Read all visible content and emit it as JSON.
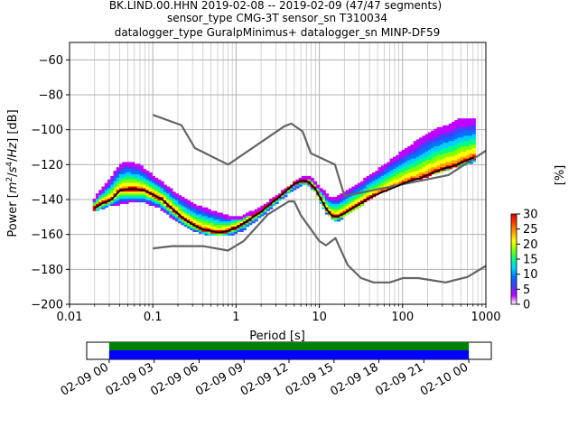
{
  "chart_data": {
    "type": "heatmap",
    "title_lines": [
      "BK.LIND.00.HHN   2019-02-08 -- 2019-02-09  (47/47 segments)",
      "sensor_type CMG-3T sensor_sn T310034",
      "datalogger_type GuralpMinimus+ datalogger_sn MINP-DF59"
    ],
    "xlabel": "Period [s]",
    "ylabel_parts": [
      "Power [",
      "m",
      "2",
      "/",
      "s",
      "4",
      "/",
      "Hz",
      "] [dB]"
    ],
    "x_scale": "log",
    "xlim": [
      0.01,
      1000
    ],
    "ylim": [
      -200,
      -50
    ],
    "x_ticks": [
      {
        "value": 0.01,
        "label": "0.01"
      },
      {
        "value": 0.1,
        "label": "0.1"
      },
      {
        "value": 1,
        "label": "1"
      },
      {
        "value": 10,
        "label": "10"
      },
      {
        "value": 100,
        "label": "100"
      },
      {
        "value": 1000,
        "label": "1000"
      }
    ],
    "y_ticks": [
      {
        "value": -60,
        "label": "−60"
      },
      {
        "value": -80,
        "label": "−80"
      },
      {
        "value": -100,
        "label": "−100"
      },
      {
        "value": -120,
        "label": "−120"
      },
      {
        "value": -140,
        "label": "−140"
      },
      {
        "value": -160,
        "label": "−160"
      },
      {
        "value": -180,
        "label": "−180"
      },
      {
        "value": -200,
        "label": "−200"
      }
    ],
    "grid": true,
    "colorbar": {
      "label": "[%]",
      "range": [
        0,
        30
      ],
      "ticks": [
        {
          "value": 30,
          "label": "30"
        },
        {
          "value": 25,
          "label": "25"
        },
        {
          "value": 20,
          "label": "20"
        },
        {
          "value": 15,
          "label": "15"
        },
        {
          "value": 10,
          "label": "10"
        },
        {
          "value": 5,
          "label": "5"
        },
        {
          "value": 0,
          "label": "0"
        }
      ],
      "colors": [
        "#ffffff",
        "#c000ff",
        "#4040ff",
        "#0070ff",
        "#00d0ff",
        "#00ff80",
        "#80ff00",
        "#ffff00",
        "#ffa000",
        "#ff4000",
        "#e00000"
      ]
    },
    "noise_model_high": {
      "periods": [
        0.1,
        0.22,
        0.32,
        0.8,
        3.8,
        4.6,
        6.3,
        7.9,
        15.4,
        20,
        354.8,
        1000
      ],
      "db": [
        -91.5,
        -97.4,
        -110.5,
        -120,
        -98,
        -96.5,
        -101,
        -113.5,
        -120,
        -138,
        -126,
        -112
      ]
    },
    "noise_model_low": {
      "periods": [
        0.1,
        0.17,
        0.4,
        0.8,
        1.24,
        2.4,
        4.3,
        5,
        6,
        10,
        12,
        15.6,
        21.9,
        31.6,
        45,
        70,
        101,
        154,
        328,
        600,
        1000
      ],
      "db": [
        -168,
        -166.7,
        -166.7,
        -169.2,
        -163.7,
        -148.6,
        -141.1,
        -141.1,
        -149,
        -163.8,
        -166.2,
        -162.1,
        -177.5,
        -185,
        -187.5,
        -187.5,
        -185,
        -185,
        -187.5,
        -184.4,
        -178
      ]
    },
    "mode_curve": {
      "periods": [
        0.02,
        0.025,
        0.032,
        0.04,
        0.05,
        0.063,
        0.08,
        0.1,
        0.13,
        0.16,
        0.2,
        0.25,
        0.32,
        0.4,
        0.5,
        0.63,
        0.8,
        1,
        1.3,
        1.6,
        2,
        2.5,
        3.2,
        4,
        5,
        6.3,
        7.5,
        9,
        10,
        12,
        14,
        16,
        20,
        25,
        32,
        40,
        50,
        63,
        80,
        100,
        130,
        160,
        200,
        250,
        320,
        400,
        500,
        630,
        720
      ],
      "db": [
        -145,
        -142,
        -140,
        -135,
        -134,
        -134,
        -135,
        -137,
        -140,
        -144,
        -148,
        -152,
        -155,
        -157,
        -158,
        -159,
        -158,
        -156,
        -153,
        -150,
        -147,
        -143,
        -139,
        -135,
        -131,
        -129,
        -130,
        -134,
        -138,
        -145,
        -149,
        -150,
        -148,
        -145,
        -142,
        -139,
        -137,
        -135,
        -133,
        -131,
        -129,
        -128,
        -126,
        -124,
        -122,
        -121,
        -119,
        -117,
        -116
      ]
    },
    "min_curve": {
      "periods": [
        0.02,
        0.03,
        0.05,
        0.08,
        0.12,
        0.2,
        0.3,
        0.5,
        0.8,
        1.2,
        2,
        3.5,
        5.5,
        7,
        9,
        12,
        16,
        25,
        50,
        100,
        200,
        400,
        720
      ],
      "db": [
        -146,
        -143,
        -141,
        -141,
        -144,
        -152,
        -157,
        -160,
        -160,
        -157,
        -149,
        -139,
        -132,
        -130,
        -135,
        -147,
        -152,
        -146,
        -136,
        -130,
        -126,
        -121,
        -118
      ]
    },
    "max_curve": {
      "periods": [
        0.02,
        0.03,
        0.04,
        0.05,
        0.07,
        0.1,
        0.15,
        0.2,
        0.3,
        0.5,
        0.8,
        1.2,
        2,
        3,
        5,
        6.5,
        8,
        10,
        13,
        17,
        25,
        50,
        100,
        200,
        300,
        400,
        500,
        720
      ],
      "db": [
        -140,
        -130,
        -121,
        -119,
        -121,
        -127,
        -133,
        -138,
        -143,
        -147,
        -150,
        -150,
        -145,
        -139,
        -131,
        -127,
        -128,
        -133,
        -139,
        -139,
        -134,
        -124,
        -113,
        -103,
        -99,
        -97,
        -94.5,
        -94.5
      ]
    },
    "timeline": {
      "labels": [
        "02-09 00",
        "02-09 03",
        "02-09 06",
        "02-09 09",
        "02-09 12",
        "02-09 15",
        "02-09 18",
        "02-09 21",
        "02-10 00"
      ],
      "tick_hours": [
        0,
        3,
        6,
        9,
        12,
        15,
        18,
        21,
        24
      ],
      "range_hours": [
        -1.5,
        25.5
      ],
      "coverage_hours": [
        0,
        24
      ],
      "coverage_colors": [
        "#008000",
        "#0000ff"
      ]
    }
  }
}
